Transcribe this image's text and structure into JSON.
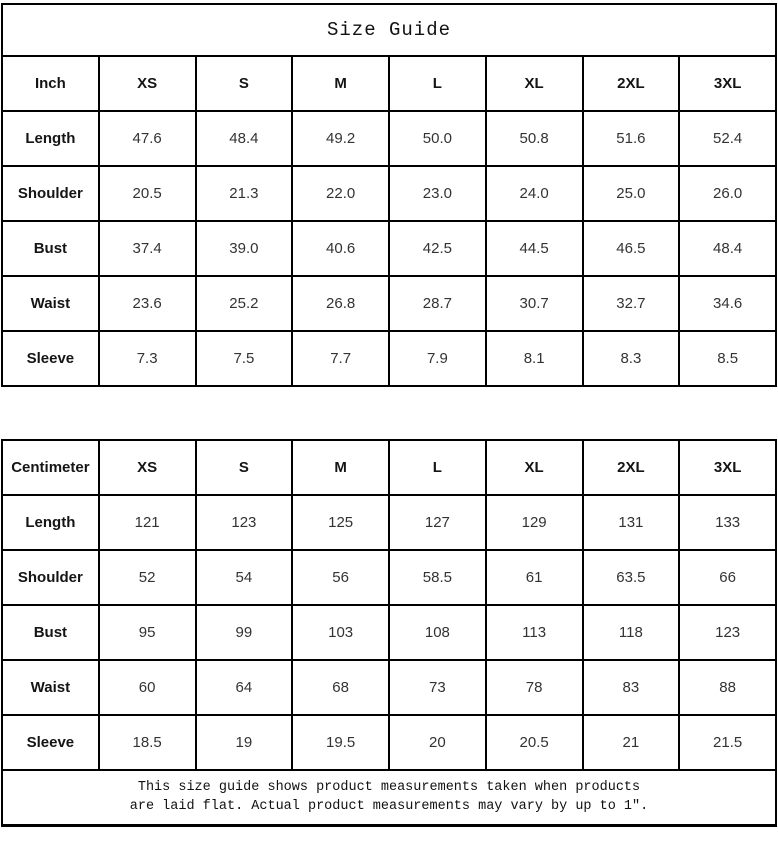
{
  "title": "Size Guide",
  "colors": {
    "background": "#ffffff",
    "border": "#000000",
    "label_text": "#151515",
    "value_text": "#333333"
  },
  "inch_table": {
    "unit_label": "Inch",
    "sizes": [
      "XS",
      "S",
      "M",
      "L",
      "XL",
      "2XL",
      "3XL"
    ],
    "rows": [
      {
        "label": "Length",
        "values": [
          "47.6",
          "48.4",
          "49.2",
          "50.0",
          "50.8",
          "51.6",
          "52.4"
        ]
      },
      {
        "label": "Shoulder",
        "values": [
          "20.5",
          "21.3",
          "22.0",
          "23.0",
          "24.0",
          "25.0",
          "26.0"
        ]
      },
      {
        "label": "Bust",
        "values": [
          "37.4",
          "39.0",
          "40.6",
          "42.5",
          "44.5",
          "46.5",
          "48.4"
        ]
      },
      {
        "label": "Waist",
        "values": [
          "23.6",
          "25.2",
          "26.8",
          "28.7",
          "30.7",
          "32.7",
          "34.6"
        ]
      },
      {
        "label": "Sleeve",
        "values": [
          "7.3",
          "7.5",
          "7.7",
          "7.9",
          "8.1",
          "8.3",
          "8.5"
        ]
      }
    ]
  },
  "cm_table": {
    "unit_label": "Centimeter",
    "sizes": [
      "XS",
      "S",
      "M",
      "L",
      "XL",
      "2XL",
      "3XL"
    ],
    "rows": [
      {
        "label": "Length",
        "values": [
          "121",
          "123",
          "125",
          "127",
          "129",
          "131",
          "133"
        ]
      },
      {
        "label": "Shoulder",
        "values": [
          "52",
          "54",
          "56",
          "58.5",
          "61",
          "63.5",
          "66"
        ]
      },
      {
        "label": "Bust",
        "values": [
          "95",
          "99",
          "103",
          "108",
          "113",
          "118",
          "123"
        ]
      },
      {
        "label": "Waist",
        "values": [
          "60",
          "64",
          "68",
          "73",
          "78",
          "83",
          "88"
        ]
      },
      {
        "label": "Sleeve",
        "values": [
          "18.5",
          "19",
          "19.5",
          "20",
          "20.5",
          "21",
          "21.5"
        ]
      }
    ]
  },
  "footer": {
    "line1": "This size guide shows product measurements taken when products",
    "line2": "are laid flat. Actual product measurements may vary by up to 1″."
  }
}
